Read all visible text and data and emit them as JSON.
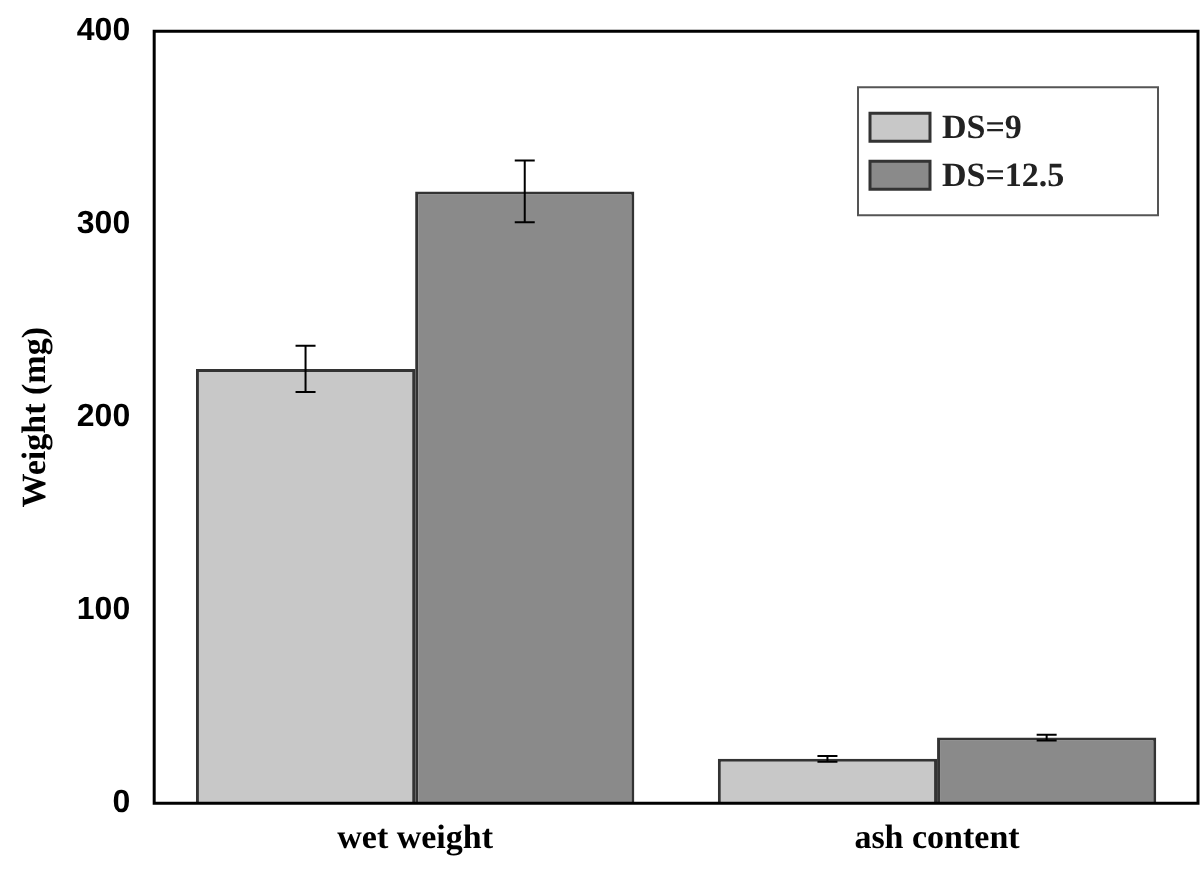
{
  "chart_data": {
    "type": "bar",
    "ylabel": "Weight (mg)",
    "categories": [
      "wet weight",
      "ash content"
    ],
    "series": [
      {
        "name": "DS=9",
        "color": "#c8c8c8",
        "values": [
          225,
          23
        ],
        "errors": [
          12,
          1.5
        ]
      },
      {
        "name": "DS=12.5",
        "color": "#8a8a8a",
        "values": [
          317,
          34
        ],
        "errors": [
          16,
          1.5
        ]
      }
    ],
    "ylim": [
      0,
      400
    ],
    "yticks": [
      0,
      100,
      200,
      300,
      400
    ],
    "grid": false,
    "legend": "top right"
  }
}
